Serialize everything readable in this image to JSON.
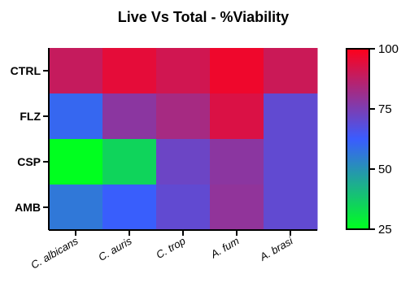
{
  "chart_data": {
    "type": "heatmap",
    "title": "Live Vs Total - %Viability",
    "rows": [
      "CTRL",
      "FLZ",
      "CSP",
      "AMB"
    ],
    "columns": [
      "C. albicans",
      "C. auris",
      "C. trop",
      "A. fum",
      "A. brasi"
    ],
    "values": [
      [
        89,
        95,
        91,
        97,
        90
      ],
      [
        60,
        78,
        83,
        93,
        70
      ],
      [
        25,
        35,
        72,
        78,
        70
      ],
      [
        56,
        62,
        70,
        79,
        70
      ]
    ],
    "colorbar": {
      "min": 25,
      "max": 100,
      "ticks": [
        "25",
        "50",
        "75",
        "100"
      ],
      "colors": {
        "low": "#00ff1f",
        "mid": "#3a5cff",
        "high": "#ff001a"
      }
    }
  }
}
